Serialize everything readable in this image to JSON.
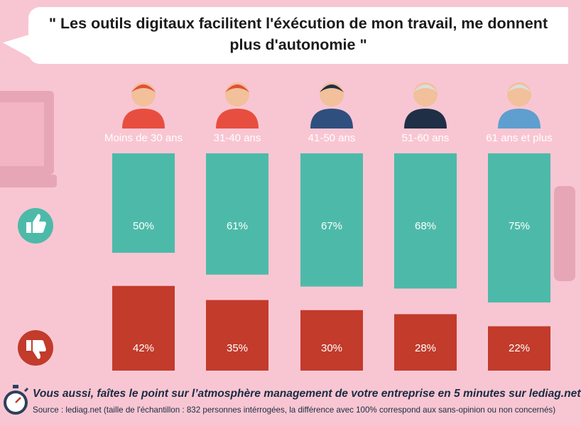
{
  "title": "\" Les outils digitaux facilitent l'éxécution de mon travail, me donnent plus d'autonomie \"",
  "footer": {
    "main": "Vous aussi, faîtes le point sur l’atmosphère management de votre entreprise en 5 minutes sur lediag.net",
    "source": "Source : lediag.net (taille de l'échantillon : 832 personnes intérrogées, la différence avec 100% correspond aux sans-opinion ou non concernés)"
  },
  "icons": {
    "agree": "thumbs-up-icon",
    "disagree": "thumbs-down-icon",
    "footer": "stopwatch-icon",
    "decor_left": "laptop-icon",
    "decor_right": "device-icon"
  },
  "colors": {
    "background": "#f8c6d2",
    "agree": "#4dbaa9",
    "disagree": "#c23b2b",
    "bubble": "#ffffff"
  },
  "chart_data": {
    "type": "bar",
    "categories": [
      "Moins de 30 ans",
      "31-40 ans",
      "41-50 ans",
      "51-60 ans",
      "61 ans et plus"
    ],
    "series": [
      {
        "values": [
          50,
          61,
          67,
          68,
          75
        ],
        "labels": [
          "50%",
          "61%",
          "67%",
          "68%",
          "75%"
        ],
        "color": "#4dbaa9"
      },
      {
        "values": [
          42,
          35,
          30,
          28,
          22
        ],
        "labels": [
          "42%",
          "35%",
          "30%",
          "28%",
          "22%"
        ],
        "color": "#c23b2b"
      }
    ],
    "unit": "%",
    "ylim": [
      0,
      100
    ],
    "grid": false,
    "legend": "none"
  }
}
